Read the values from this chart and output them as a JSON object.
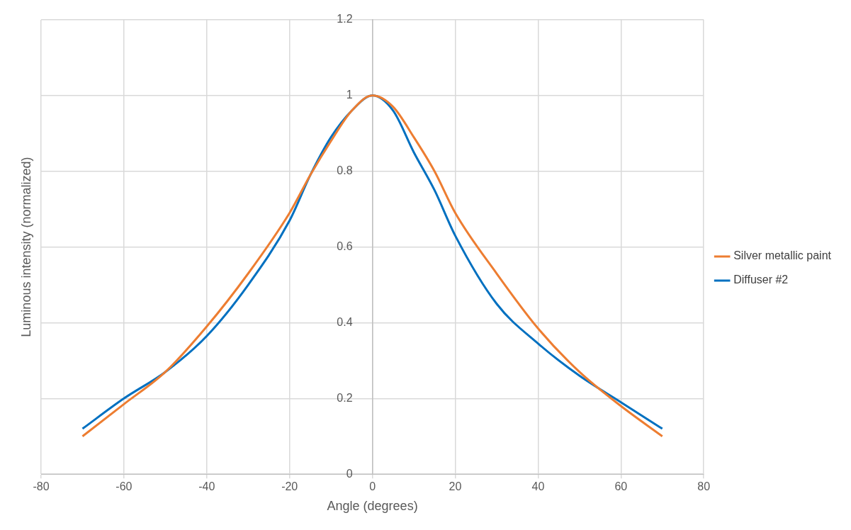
{
  "chart_data": {
    "type": "line",
    "xlabel": "Angle (degrees)",
    "ylabel": "Luminous intensity (normalized)",
    "xlim": [
      -80,
      80
    ],
    "xticks": [
      -80,
      -60,
      -40,
      -20,
      0,
      20,
      40,
      60,
      80
    ],
    "ylim": [
      0,
      1.2
    ],
    "yticks": [
      0,
      0.2,
      0.4,
      0.6,
      0.8,
      1,
      1.2
    ],
    "grid": true,
    "legend": "right",
    "marker": "none",
    "line_style": "solid",
    "series": [
      {
        "name": "Silver metallic paint",
        "color": "#ed7d31",
        "x": [
          -70,
          -60,
          -50,
          -40,
          -30,
          -20,
          -15,
          -10,
          -5,
          0,
          5,
          10,
          15,
          20,
          30,
          40,
          50,
          60,
          70
        ],
        "values": [
          0.1,
          0.185,
          0.27,
          0.39,
          0.53,
          0.69,
          0.79,
          0.88,
          0.96,
          1.0,
          0.97,
          0.89,
          0.8,
          0.69,
          0.53,
          0.385,
          0.27,
          0.18,
          0.1
        ]
      },
      {
        "name": "Diffuser #2",
        "color": "#0070c0",
        "x": [
          -70,
          -60,
          -50,
          -40,
          -30,
          -20,
          -15,
          -10,
          -5,
          0,
          5,
          10,
          15,
          20,
          30,
          40,
          50,
          60,
          70
        ],
        "values": [
          0.12,
          0.2,
          0.27,
          0.365,
          0.5,
          0.67,
          0.79,
          0.89,
          0.96,
          1.0,
          0.96,
          0.85,
          0.75,
          0.63,
          0.45,
          0.345,
          0.26,
          0.19,
          0.12
        ]
      }
    ]
  }
}
